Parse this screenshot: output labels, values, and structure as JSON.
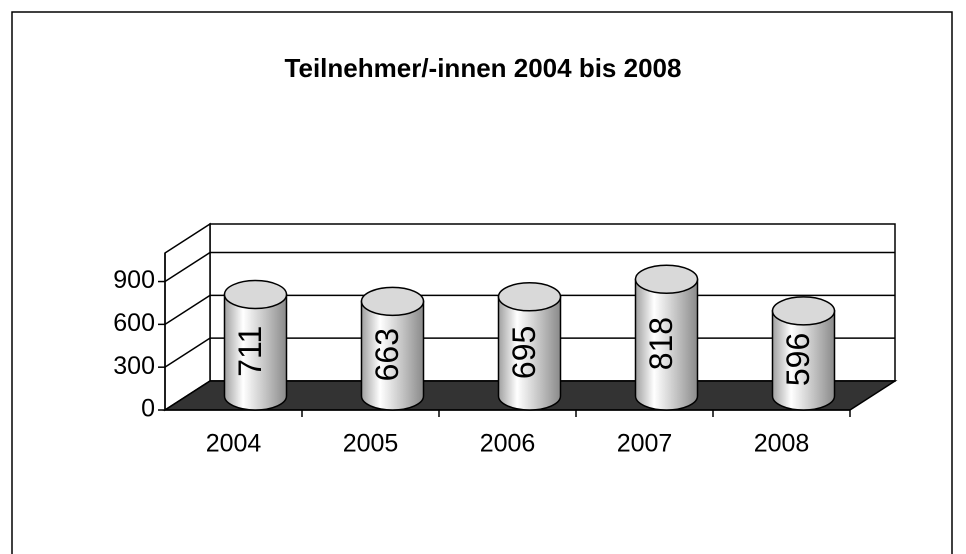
{
  "chart_data": {
    "type": "bar",
    "title": "Teilnehmer/-innen 2004 bis 2008",
    "categories": [
      "2004",
      "2005",
      "2006",
      "2007",
      "2008"
    ],
    "values": [
      711,
      663,
      695,
      818,
      596
    ],
    "color": "#d9d9d9",
    "ylim": [
      0,
      1100
    ],
    "yticks": [
      0,
      300,
      600,
      900
    ],
    "grid": true
  }
}
